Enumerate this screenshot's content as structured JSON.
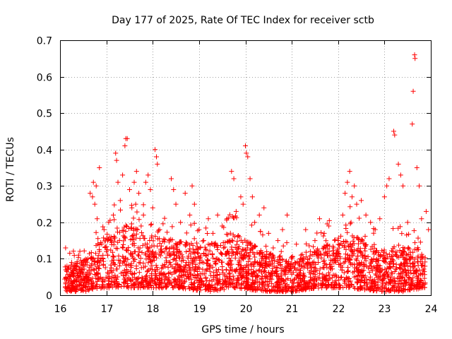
{
  "chart_data": {
    "type": "scatter",
    "title": "Day 177 of 2025, Rate Of TEC Index for receiver sctb",
    "xlabel": "GPS time / hours",
    "ylabel": "ROTI / TECUs",
    "xlim": [
      16,
      24
    ],
    "ylim": [
      0,
      0.7
    ],
    "x_ticks": [
      16,
      17,
      18,
      19,
      20,
      21,
      22,
      23,
      24
    ],
    "x_tick_labels": [
      "16",
      "17",
      "18",
      "19",
      "20",
      "21",
      "22",
      "23",
      "24"
    ],
    "y_ticks": [
      0,
      0.1,
      0.2,
      0.3,
      0.4,
      0.5,
      0.6,
      0.7
    ],
    "y_tick_labels": [
      "0",
      "0.1",
      "0.2",
      "0.3",
      "0.4",
      "0.5",
      "0.6",
      "0.7"
    ],
    "grid": true,
    "marker": "plus",
    "marker_color": "#ff0000",
    "series": [
      {
        "name": "ROTI",
        "points": [
          [
            16.12,
            0.13
          ],
          [
            16.15,
            0.08
          ],
          [
            16.2,
            0.05
          ],
          [
            16.25,
            0.09
          ],
          [
            16.3,
            0.04
          ],
          [
            16.35,
            0.07
          ],
          [
            16.4,
            0.11
          ],
          [
            16.45,
            0.06
          ],
          [
            16.5,
            0.08
          ],
          [
            16.55,
            0.05
          ],
          [
            16.6,
            0.1
          ],
          [
            16.65,
            0.28
          ],
          [
            16.7,
            0.27
          ],
          [
            16.72,
            0.31
          ],
          [
            16.75,
            0.25
          ],
          [
            16.78,
            0.3
          ],
          [
            16.8,
            0.21
          ],
          [
            16.85,
            0.35
          ],
          [
            16.9,
            0.14
          ],
          [
            16.95,
            0.18
          ],
          [
            17.0,
            0.12
          ],
          [
            17.05,
            0.2
          ],
          [
            17.1,
            0.16
          ],
          [
            17.15,
            0.22
          ],
          [
            17.2,
            0.39
          ],
          [
            17.22,
            0.37
          ],
          [
            17.25,
            0.31
          ],
          [
            17.3,
            0.26
          ],
          [
            17.35,
            0.33
          ],
          [
            17.4,
            0.41
          ],
          [
            17.42,
            0.43
          ],
          [
            17.45,
            0.43
          ],
          [
            17.5,
            0.29
          ],
          [
            17.55,
            0.24
          ],
          [
            17.6,
            0.31
          ],
          [
            17.65,
            0.34
          ],
          [
            17.7,
            0.28
          ],
          [
            17.75,
            0.19
          ],
          [
            17.8,
            0.22
          ],
          [
            17.85,
            0.31
          ],
          [
            17.9,
            0.33
          ],
          [
            17.95,
            0.29
          ],
          [
            18.0,
            0.24
          ],
          [
            18.05,
            0.4
          ],
          [
            18.08,
            0.38
          ],
          [
            18.1,
            0.36
          ],
          [
            18.15,
            0.18
          ],
          [
            18.2,
            0.12
          ],
          [
            18.3,
            0.09
          ],
          [
            18.4,
            0.32
          ],
          [
            18.45,
            0.29
          ],
          [
            18.5,
            0.25
          ],
          [
            18.6,
            0.2
          ],
          [
            18.7,
            0.28
          ],
          [
            18.8,
            0.22
          ],
          [
            18.85,
            0.3
          ],
          [
            18.9,
            0.25
          ],
          [
            19.0,
            0.18
          ],
          [
            19.1,
            0.15
          ],
          [
            19.2,
            0.21
          ],
          [
            19.3,
            0.17
          ],
          [
            19.4,
            0.22
          ],
          [
            19.5,
            0.19
          ],
          [
            19.6,
            0.21
          ],
          [
            19.7,
            0.34
          ],
          [
            19.75,
            0.32
          ],
          [
            19.8,
            0.23
          ],
          [
            19.9,
            0.27
          ],
          [
            19.95,
            0.25
          ],
          [
            20.0,
            0.41
          ],
          [
            20.02,
            0.39
          ],
          [
            20.05,
            0.38
          ],
          [
            20.1,
            0.32
          ],
          [
            20.15,
            0.27
          ],
          [
            20.2,
            0.2
          ],
          [
            20.3,
            0.22
          ],
          [
            20.4,
            0.24
          ],
          [
            20.5,
            0.17
          ],
          [
            20.6,
            0.13
          ],
          [
            20.7,
            0.15
          ],
          [
            20.8,
            0.18
          ],
          [
            20.9,
            0.22
          ],
          [
            21.0,
            0.1
          ],
          [
            21.1,
            0.14
          ],
          [
            21.2,
            0.11
          ],
          [
            21.3,
            0.18
          ],
          [
            21.4,
            0.12
          ],
          [
            21.5,
            0.15
          ],
          [
            21.6,
            0.21
          ],
          [
            21.7,
            0.17
          ],
          [
            21.8,
            0.19
          ],
          [
            21.9,
            0.13
          ],
          [
            22.0,
            0.15
          ],
          [
            22.1,
            0.22
          ],
          [
            22.15,
            0.28
          ],
          [
            22.2,
            0.31
          ],
          [
            22.25,
            0.34
          ],
          [
            22.3,
            0.27
          ],
          [
            22.35,
            0.3
          ],
          [
            22.4,
            0.25
          ],
          [
            22.5,
            0.26
          ],
          [
            22.6,
            0.22
          ],
          [
            22.7,
            0.2
          ],
          [
            22.8,
            0.18
          ],
          [
            22.9,
            0.21
          ],
          [
            23.0,
            0.27
          ],
          [
            23.05,
            0.3
          ],
          [
            23.1,
            0.32
          ],
          [
            23.2,
            0.45
          ],
          [
            23.22,
            0.44
          ],
          [
            23.3,
            0.36
          ],
          [
            23.35,
            0.33
          ],
          [
            23.4,
            0.3
          ],
          [
            23.5,
            0.2
          ],
          [
            23.6,
            0.47
          ],
          [
            23.62,
            0.56
          ],
          [
            23.65,
            0.66
          ],
          [
            23.66,
            0.65
          ],
          [
            23.7,
            0.35
          ],
          [
            23.75,
            0.3
          ],
          [
            23.8,
            0.21
          ],
          [
            23.9,
            0.23
          ],
          [
            23.95,
            0.18
          ],
          [
            16.3,
            0.02
          ],
          [
            16.7,
            0.02
          ],
          [
            17.1,
            0.03
          ],
          [
            17.6,
            0.03
          ],
          [
            18.2,
            0.02
          ],
          [
            18.9,
            0.02
          ],
          [
            19.5,
            0.02
          ],
          [
            20.1,
            0.02
          ],
          [
            20.7,
            0.02
          ],
          [
            21.3,
            0.02
          ],
          [
            21.9,
            0.02
          ],
          [
            22.5,
            0.02
          ],
          [
            23.0,
            0.02
          ],
          [
            23.4,
            0.01
          ],
          [
            23.8,
            0.02
          ]
        ]
      }
    ],
    "dense_band": {
      "segments": [
        [
          16.1,
          0.01,
          0.08
        ],
        [
          16.55,
          0.01,
          0.1
        ],
        [
          16.9,
          0.02,
          0.16
        ],
        [
          17.5,
          0.02,
          0.2
        ],
        [
          18.1,
          0.02,
          0.16
        ],
        [
          18.5,
          0.02,
          0.15
        ],
        [
          19.2,
          0.01,
          0.14
        ],
        [
          19.8,
          0.02,
          0.17
        ],
        [
          20.4,
          0.01,
          0.12
        ],
        [
          21.0,
          0.01,
          0.1
        ],
        [
          21.6,
          0.02,
          0.13
        ],
        [
          22.2,
          0.02,
          0.18
        ],
        [
          22.9,
          0.01,
          0.12
        ],
        [
          23.3,
          0.01,
          0.14
        ],
        [
          23.9,
          0.02,
          0.12
        ]
      ],
      "count": 2600,
      "seed": 177
    }
  }
}
